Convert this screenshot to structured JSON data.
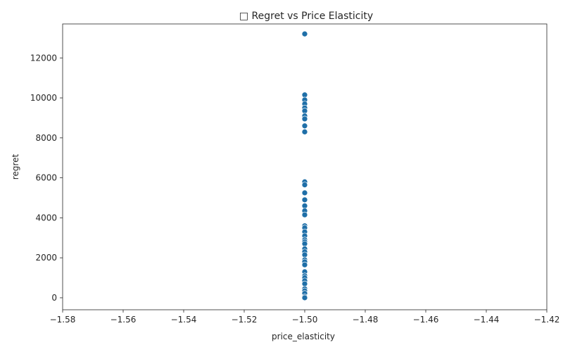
{
  "chart_data": {
    "type": "scatter",
    "title": "□ Regret vs Price Elasticity",
    "xlabel": "price_elasticity",
    "ylabel": "regret",
    "xlim": [
      -1.58,
      -1.42
    ],
    "ylim": [
      -600,
      13700
    ],
    "x_ticks": [
      "−1.58",
      "−1.56",
      "−1.54",
      "−1.52",
      "−1.50",
      "−1.48",
      "−1.46",
      "−1.44",
      "−1.42"
    ],
    "x_tick_values": [
      -1.58,
      -1.56,
      -1.54,
      -1.52,
      -1.5,
      -1.48,
      -1.46,
      -1.44,
      -1.42
    ],
    "y_ticks": [
      "0",
      "2000",
      "4000",
      "6000",
      "8000",
      "10000",
      "12000"
    ],
    "y_tick_values": [
      0,
      2000,
      4000,
      6000,
      8000,
      10000,
      12000
    ],
    "grid": false,
    "marker_color": "#1f6fa8",
    "points": [
      {
        "x": -1.5,
        "y": 13200
      },
      {
        "x": -1.5,
        "y": 10150
      },
      {
        "x": -1.5,
        "y": 9900
      },
      {
        "x": -1.5,
        "y": 9700
      },
      {
        "x": -1.5,
        "y": 9500
      },
      {
        "x": -1.5,
        "y": 9350
      },
      {
        "x": -1.5,
        "y": 9100
      },
      {
        "x": -1.5,
        "y": 8950
      },
      {
        "x": -1.5,
        "y": 8600
      },
      {
        "x": -1.5,
        "y": 8300
      },
      {
        "x": -1.5,
        "y": 5800
      },
      {
        "x": -1.5,
        "y": 5650
      },
      {
        "x": -1.5,
        "y": 5250
      },
      {
        "x": -1.5,
        "y": 4900
      },
      {
        "x": -1.5,
        "y": 4600
      },
      {
        "x": -1.5,
        "y": 4350
      },
      {
        "x": -1.5,
        "y": 4150
      },
      {
        "x": -1.5,
        "y": 3600
      },
      {
        "x": -1.5,
        "y": 3500
      },
      {
        "x": -1.5,
        "y": 3300
      },
      {
        "x": -1.5,
        "y": 3100
      },
      {
        "x": -1.5,
        "y": 2900
      },
      {
        "x": -1.5,
        "y": 2800
      },
      {
        "x": -1.5,
        "y": 2700
      },
      {
        "x": -1.5,
        "y": 2450
      },
      {
        "x": -1.5,
        "y": 2300
      },
      {
        "x": -1.5,
        "y": 2150
      },
      {
        "x": -1.5,
        "y": 1900
      },
      {
        "x": -1.5,
        "y": 1800
      },
      {
        "x": -1.5,
        "y": 1650
      },
      {
        "x": -1.5,
        "y": 1300
      },
      {
        "x": -1.5,
        "y": 1100
      },
      {
        "x": -1.5,
        "y": 1000
      },
      {
        "x": -1.5,
        "y": 850
      },
      {
        "x": -1.5,
        "y": 700
      },
      {
        "x": -1.5,
        "y": 450
      },
      {
        "x": -1.5,
        "y": 350
      },
      {
        "x": -1.5,
        "y": 220
      },
      {
        "x": -1.5,
        "y": 50
      },
      {
        "x": -1.5,
        "y": 0
      }
    ]
  }
}
